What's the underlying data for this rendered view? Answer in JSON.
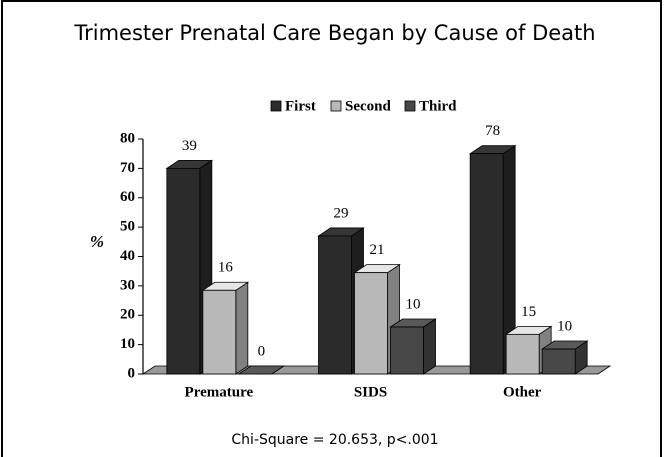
{
  "chart_data": {
    "type": "bar3d",
    "title": "Trimester Prenatal Care Began by Cause of Death",
    "ylabel": "%",
    "note": "Chi-Square = 20.653, p<.001",
    "categories": [
      "Premature",
      "SIDS",
      "Other"
    ],
    "series": [
      {
        "name": "First",
        "color": "#2b2b2b",
        "values": [
          70,
          47,
          75
        ],
        "counts": [
          39,
          29,
          78
        ]
      },
      {
        "name": "Second",
        "color": "#b8b8b8",
        "values": [
          28.5,
          34.5,
          13.5
        ],
        "counts": [
          16,
          21,
          15
        ]
      },
      {
        "name": "Third",
        "color": "#474747",
        "values": [
          0,
          16,
          8.5
        ],
        "counts": [
          0,
          10,
          10
        ]
      }
    ],
    "ylim": [
      0,
      80
    ],
    "yticks": [
      0,
      10,
      20,
      30,
      40,
      50,
      60,
      70,
      80
    ]
  }
}
